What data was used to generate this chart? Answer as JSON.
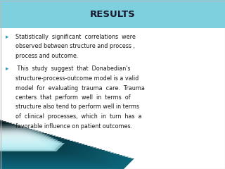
{
  "title": "RESULTS",
  "title_color": "#1a1a2e",
  "header_bg_color": "#7ed0de",
  "body_bg_color": "#ffffff",
  "text_color": "#1a1a1a",
  "bullet_color": "#2a9ab5",
  "font_size_title": 9.5,
  "font_size_body": 5.8,
  "bullet1_lines": [
    "Statistically  significant  correlations  were",
    "observed between structure and process ,",
    "process and outcome."
  ],
  "bullet2_lines": [
    " This  study  suggest  that  Donabedian's",
    "structure-process-outcome model is a valid",
    "model  for  evaluating  trauma  care.  Trauma",
    "centers  that  perform  well  in  terms  of",
    "structure also tend to perform well in terms",
    "of  clinical  processes,  which  in  turn  has  a",
    "favorable influence on patient outcomes."
  ],
  "gradient_color1": [
    0.05,
    0.4,
    0.48
  ],
  "gradient_color2": [
    0.0,
    0.0,
    0.0
  ],
  "gradient_color3": [
    0.7,
    0.92,
    0.95
  ]
}
